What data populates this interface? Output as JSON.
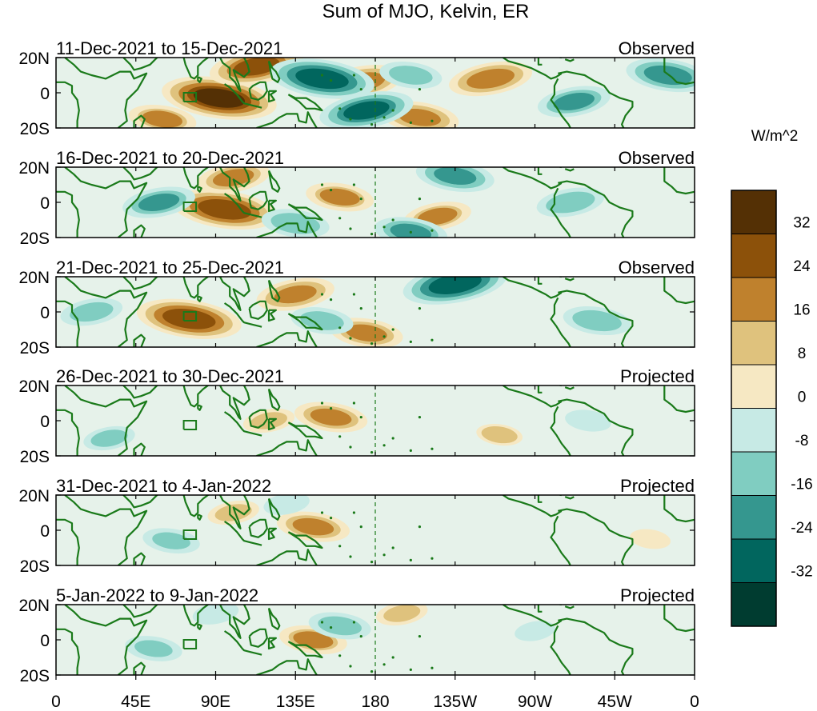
{
  "title": "Sum of MJO, Kelvin, ER",
  "panels": [
    {
      "date_range": "11-Dec-2021 to 15-Dec-2021",
      "status": "Observed"
    },
    {
      "date_range": "16-Dec-2021 to 20-Dec-2021",
      "status": "Observed"
    },
    {
      "date_range": "21-Dec-2021 to 25-Dec-2021",
      "status": "Observed"
    },
    {
      "date_range": "26-Dec-2021 to 30-Dec-2021",
      "status": "Projected"
    },
    {
      "date_range": "31-Dec-2021 to 4-Jan-2022",
      "status": "Projected"
    },
    {
      "date_range": "5-Jan-2022 to 9-Jan-2022",
      "status": "Projected"
    }
  ],
  "lat_labels": [
    "20N",
    "0",
    "20S"
  ],
  "lon_labels": [
    "0",
    "45E",
    "90E",
    "135E",
    "180",
    "135W",
    "90W",
    "45W",
    "0"
  ],
  "colorbar": {
    "units": "W/m^2",
    "tick_labels": [
      "32",
      "24",
      "16",
      "8",
      "0",
      "-8",
      "-16",
      "-24",
      "-32"
    ],
    "colors": [
      "#543005",
      "#8c510a",
      "#bf812d",
      "#dfc27d",
      "#f6e8c3",
      "#c7eae5",
      "#80cdc1",
      "#35978f",
      "#01665e",
      "#003c30"
    ]
  },
  "chart_data": {
    "type": "heatmap",
    "title": "Sum of MJO, Kelvin, ER",
    "variable_units": "W/m^2",
    "lat_range": [
      -20,
      20
    ],
    "lon_range": [
      0,
      360
    ],
    "contour_levels": [
      -40,
      -32,
      -24,
      -16,
      -8,
      0,
      8,
      16,
      24,
      32,
      40
    ],
    "panels": [
      {
        "period": "11-Dec-2021 to 15-Dec-2021",
        "type": "Observed",
        "features": [
          {
            "lon": 92,
            "lat": -3,
            "value": 34
          },
          {
            "lon": 113,
            "lat": 15,
            "value": 26
          },
          {
            "lon": 60,
            "lat": -15,
            "value": 16
          },
          {
            "lon": 172,
            "lat": 6,
            "value": 22
          },
          {
            "lon": 205,
            "lat": -14,
            "value": 20
          },
          {
            "lon": 245,
            "lat": 8,
            "value": 22
          },
          {
            "lon": 150,
            "lat": 8,
            "value": -30
          },
          {
            "lon": 175,
            "lat": -10,
            "value": -26
          },
          {
            "lon": 200,
            "lat": 10,
            "value": -14
          },
          {
            "lon": 292,
            "lat": -5,
            "value": -18
          },
          {
            "lon": 345,
            "lat": 10,
            "value": -22
          }
        ]
      },
      {
        "period": "16-Dec-2021 to 20-Dec-2021",
        "type": "Observed",
        "features": [
          {
            "lon": 95,
            "lat": -4,
            "value": 30
          },
          {
            "lon": 100,
            "lat": 14,
            "value": 18
          },
          {
            "lon": 160,
            "lat": 3,
            "value": 16
          },
          {
            "lon": 215,
            "lat": -8,
            "value": 16
          },
          {
            "lon": 225,
            "lat": 15,
            "value": -20
          },
          {
            "lon": 58,
            "lat": 0,
            "value": -18
          },
          {
            "lon": 135,
            "lat": -12,
            "value": -16
          },
          {
            "lon": 290,
            "lat": 0,
            "value": -16
          },
          {
            "lon": 200,
            "lat": -17,
            "value": -18
          }
        ]
      },
      {
        "period": "21-Dec-2021 to 25-Dec-2021",
        "type": "Observed",
        "features": [
          {
            "lon": 75,
            "lat": -4,
            "value": 30
          },
          {
            "lon": 135,
            "lat": 10,
            "value": 20
          },
          {
            "lon": 175,
            "lat": -12,
            "value": 18
          },
          {
            "lon": 225,
            "lat": 16,
            "value": -30
          },
          {
            "lon": 305,
            "lat": -5,
            "value": -16
          },
          {
            "lon": 20,
            "lat": 0,
            "value": -14
          },
          {
            "lon": 150,
            "lat": -5,
            "value": -14
          }
        ]
      },
      {
        "period": "26-Dec-2021 to 30-Dec-2021",
        "type": "Projected",
        "features": [
          {
            "lon": 155,
            "lat": 2,
            "value": 18
          },
          {
            "lon": 120,
            "lat": 0,
            "value": 10
          },
          {
            "lon": 250,
            "lat": -8,
            "value": 8
          },
          {
            "lon": 30,
            "lat": -10,
            "value": -10
          },
          {
            "lon": 300,
            "lat": 0,
            "value": -8
          }
        ]
      },
      {
        "period": "31-Dec-2021 to 4-Jan-2022",
        "type": "Projected",
        "features": [
          {
            "lon": 145,
            "lat": 2,
            "value": 18
          },
          {
            "lon": 100,
            "lat": 10,
            "value": 10
          },
          {
            "lon": 65,
            "lat": -6,
            "value": -12
          },
          {
            "lon": 130,
            "lat": 15,
            "value": -8
          },
          {
            "lon": 335,
            "lat": -5,
            "value": 6
          }
        ]
      },
      {
        "period": "5-Jan-2022 to 9-Jan-2022",
        "type": "Projected",
        "features": [
          {
            "lon": 145,
            "lat": 0,
            "value": 16
          },
          {
            "lon": 195,
            "lat": 15,
            "value": 10
          },
          {
            "lon": 55,
            "lat": -5,
            "value": -12
          },
          {
            "lon": 90,
            "lat": 15,
            "value": -8
          },
          {
            "lon": 160,
            "lat": 8,
            "value": -14
          },
          {
            "lon": 270,
            "lat": 5,
            "value": -6
          }
        ]
      }
    ]
  }
}
